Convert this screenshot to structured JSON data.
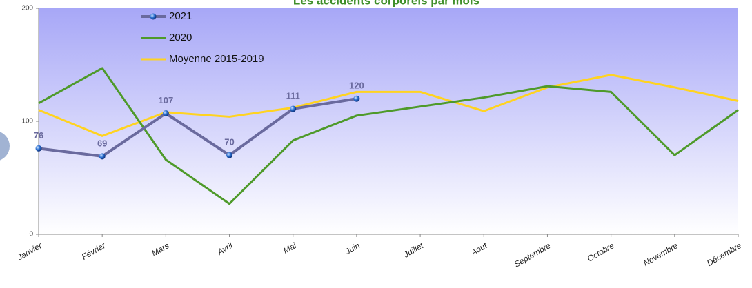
{
  "chart_data": {
    "type": "line",
    "title": "Les accidents corporels par mois",
    "categories": [
      "Janvier",
      "Février",
      "Mars",
      "Avril",
      "Mai",
      "Juin",
      "Juillet",
      "Aout",
      "Septembre",
      "Octobre",
      "Novembre",
      "Décembre"
    ],
    "series": [
      {
        "name": "2021",
        "color": "#6a6a9e",
        "values": [
          76,
          69,
          107,
          70,
          111,
          120,
          null,
          null,
          null,
          null,
          null,
          null
        ]
      },
      {
        "name": "2020",
        "color": "#4e9a2a",
        "values": [
          116,
          147,
          66,
          27,
          83,
          105,
          113,
          121,
          131,
          126,
          70,
          110
        ]
      },
      {
        "name": "Moyenne 2015-2019",
        "color": "#ffd320",
        "values": [
          110,
          87,
          108,
          104,
          112,
          126,
          126,
          109,
          130,
          141,
          130,
          118
        ]
      }
    ],
    "ylim": [
      0,
      200
    ],
    "yticks": [
      0,
      100,
      200
    ],
    "grid": false
  }
}
